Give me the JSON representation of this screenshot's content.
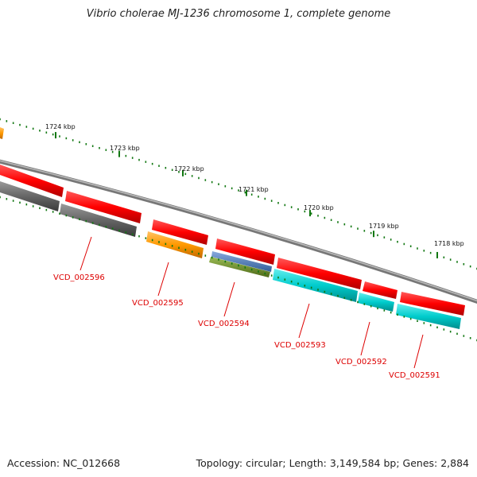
{
  "title": "Vibrio cholerae MJ-1236 chromosome 1, complete genome",
  "footer": {
    "accession": "Accession: NC_012668",
    "topology": "Topology: circular; Length: 3,149,584 bp; Genes: 2,884"
  },
  "ruler_labels": [
    "1724 kbp",
    "1723 kbp",
    "1722 kbp",
    "1721 kbp",
    "1720 kbp",
    "1719 kbp",
    "1718 kbp"
  ],
  "gene_labels": [
    "VCD_002596",
    "VCD_002595",
    "VCD_002594",
    "VCD_002593",
    "VCD_002592",
    "VCD_002591"
  ],
  "colors": {
    "forward_gene": "#ff0000",
    "reverse_gray": "#666666",
    "orange": "#ff9900",
    "blue": "#4477bb",
    "olive": "#6b8e23",
    "cyan": "#00cccc",
    "backbone": "#888888",
    "ruler": "#117711",
    "label": "#dd0000"
  }
}
